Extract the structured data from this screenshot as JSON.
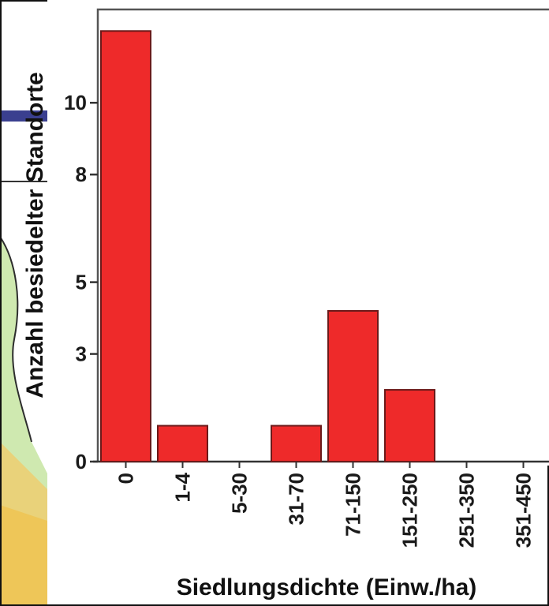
{
  "chart_data": {
    "type": "bar",
    "title": "",
    "xlabel": "Siedlungsdichte (Einw./ha)",
    "ylabel": "Anzahl besiedelter Standorte",
    "categories": [
      "0",
      "1-4",
      "5-30",
      "31-70",
      "71-150",
      "151-250",
      "251-350",
      "351-450"
    ],
    "values": [
      12,
      1,
      0,
      1,
      4.2,
      2,
      0,
      0
    ],
    "ylim": [
      0,
      12.6
    ],
    "yticks": [
      "0",
      "3",
      "5",
      "8",
      "10"
    ],
    "grid": false,
    "bar_color": "#ee2a2a",
    "bar_edge_color": "#6b1a1a"
  }
}
